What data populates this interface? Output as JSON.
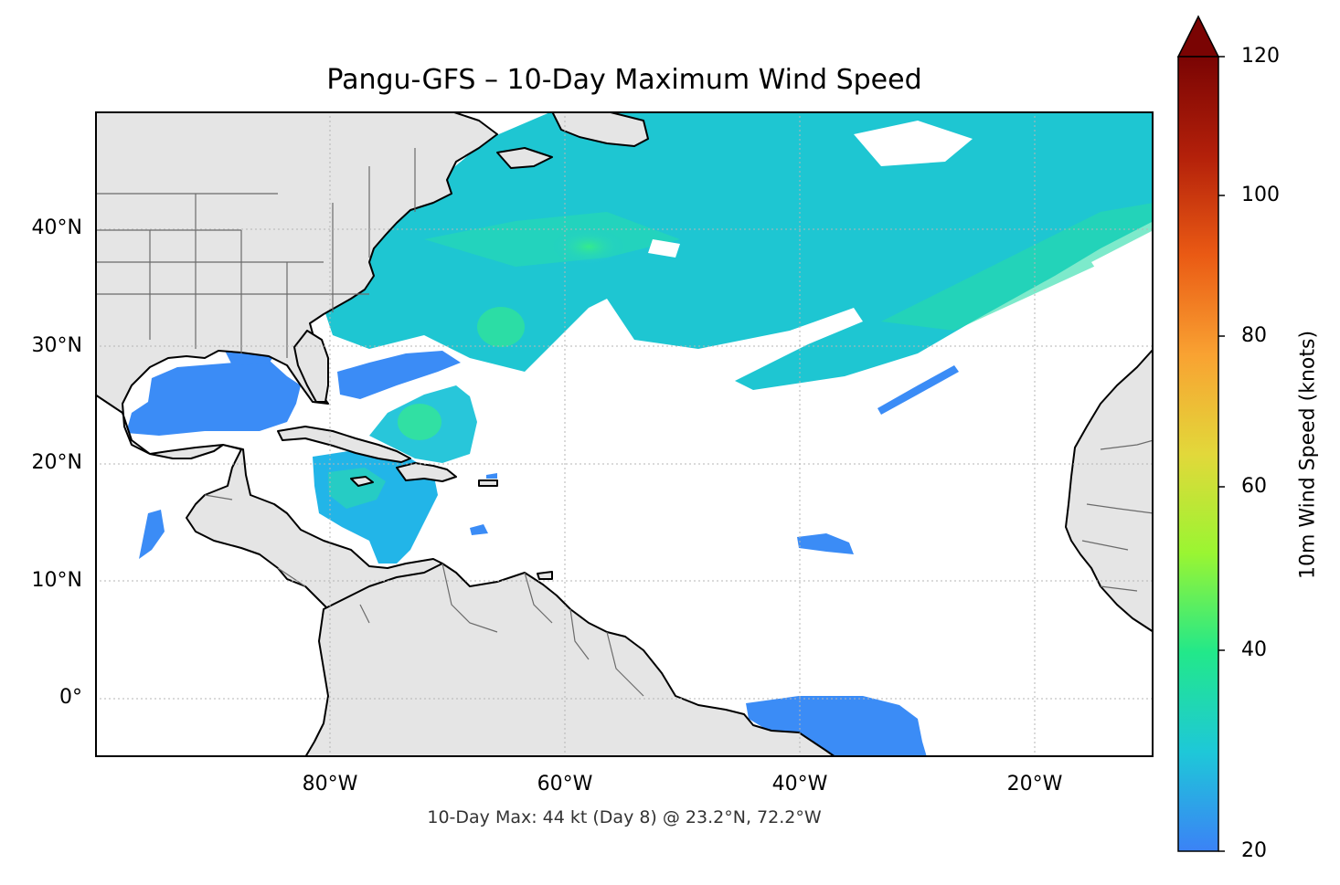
{
  "title": "Pangu-GFS – 10-Day Maximum Wind Speed",
  "annotation": "10-Day Max: 44 kt (Day 8) @ 23.2°N, 72.2°W",
  "lat_labels": [
    "40°N",
    "30°N",
    "20°N",
    "10°N",
    "0°"
  ],
  "lon_labels": [
    "80°W",
    "60°W",
    "40°W",
    "20°W"
  ],
  "colorbar": {
    "label": "10m Wind Speed (knots)",
    "ticks": [
      "120",
      "100",
      "80",
      "60",
      "40",
      "20"
    ],
    "min": 20,
    "max": 120,
    "extend": "max",
    "colormap": [
      "#3b82f6",
      "#1ec8d8",
      "#22e88a",
      "#9af532",
      "#e2d83a",
      "#f9a232",
      "#ea5a14",
      "#b3200a",
      "#7a0403"
    ]
  },
  "colors": {
    "land": "#e5e5e5",
    "coastline": "#000000",
    "borders": "#6b6b6b",
    "grid": "#b5b5b5",
    "wind_low": "#3b8cf6",
    "wind_mid": "#1fd0c8",
    "wind_high": "#2fe89a"
  },
  "map_extent": {
    "lon_min": -100,
    "lon_max": -10,
    "lat_min": -5,
    "lat_max": 50
  }
}
